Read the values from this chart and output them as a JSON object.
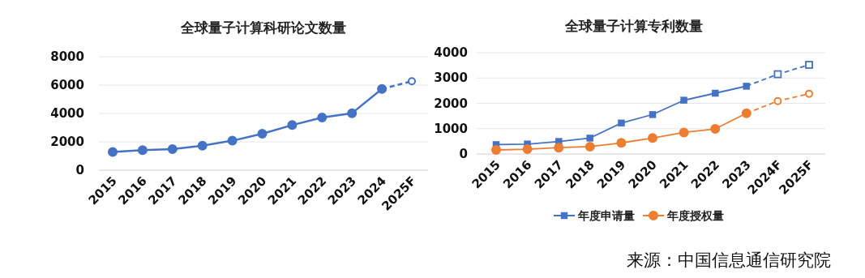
{
  "chart_data": [
    {
      "type": "line",
      "title": "全球量子计算科研论文数量",
      "categories": [
        "2015",
        "2016",
        "2017",
        "2018",
        "2019",
        "2020",
        "2021",
        "2022",
        "2023",
        "2024",
        "2025F"
      ],
      "ylim": [
        0,
        8000
      ],
      "yticks": [
        0,
        2000,
        4000,
        6000,
        8000
      ],
      "grid": "y",
      "legend": false,
      "marker": "circle",
      "series": [
        {
          "color": "#4472c4",
          "line_style": "solid",
          "values": [
            1280,
            1410,
            1490,
            1730,
            2080,
            2570,
            3180,
            3710,
            4020,
            5730,
            null
          ]
        },
        {
          "color": "#4472c4",
          "line_style": "dashed",
          "values": [
            null,
            null,
            null,
            null,
            null,
            null,
            null,
            null,
            null,
            5730,
            6270
          ]
        }
      ]
    },
    {
      "type": "line",
      "title": "全球量子计算专利数量",
      "categories": [
        "2015",
        "2016",
        "2017",
        "2018",
        "2019",
        "2020",
        "2021",
        "2022",
        "2023",
        "2024F",
        "2025F"
      ],
      "ylim": [
        0,
        4000
      ],
      "yticks": [
        0,
        1000,
        2000,
        3000,
        4000
      ],
      "grid": "y",
      "legend": "bottom",
      "annotations": [
        "来源：中国信息通信研究院"
      ],
      "series": [
        {
          "name": "年度申请量",
          "color": "#4472c4",
          "line_style": "solid",
          "marker": "square",
          "values": [
            370,
            390,
            490,
            630,
            1220,
            1560,
            2120,
            2400,
            2680,
            null,
            null
          ]
        },
        {
          "name": "年度授权量",
          "color": "#ed7d31",
          "line_style": "solid",
          "marker": "circle",
          "values": [
            160,
            190,
            250,
            290,
            440,
            630,
            850,
            990,
            1610,
            null,
            null
          ]
        },
        {
          "color": "#4472c4",
          "line_style": "dashed",
          "marker": "square",
          "values": [
            null,
            null,
            null,
            null,
            null,
            null,
            null,
            null,
            2680,
            3150,
            3520
          ]
        },
        {
          "color": "#ed7d31",
          "line_style": "dashed",
          "marker": "circle",
          "values": [
            null,
            null,
            null,
            null,
            null,
            null,
            null,
            null,
            1610,
            2090,
            2380
          ]
        }
      ]
    }
  ]
}
